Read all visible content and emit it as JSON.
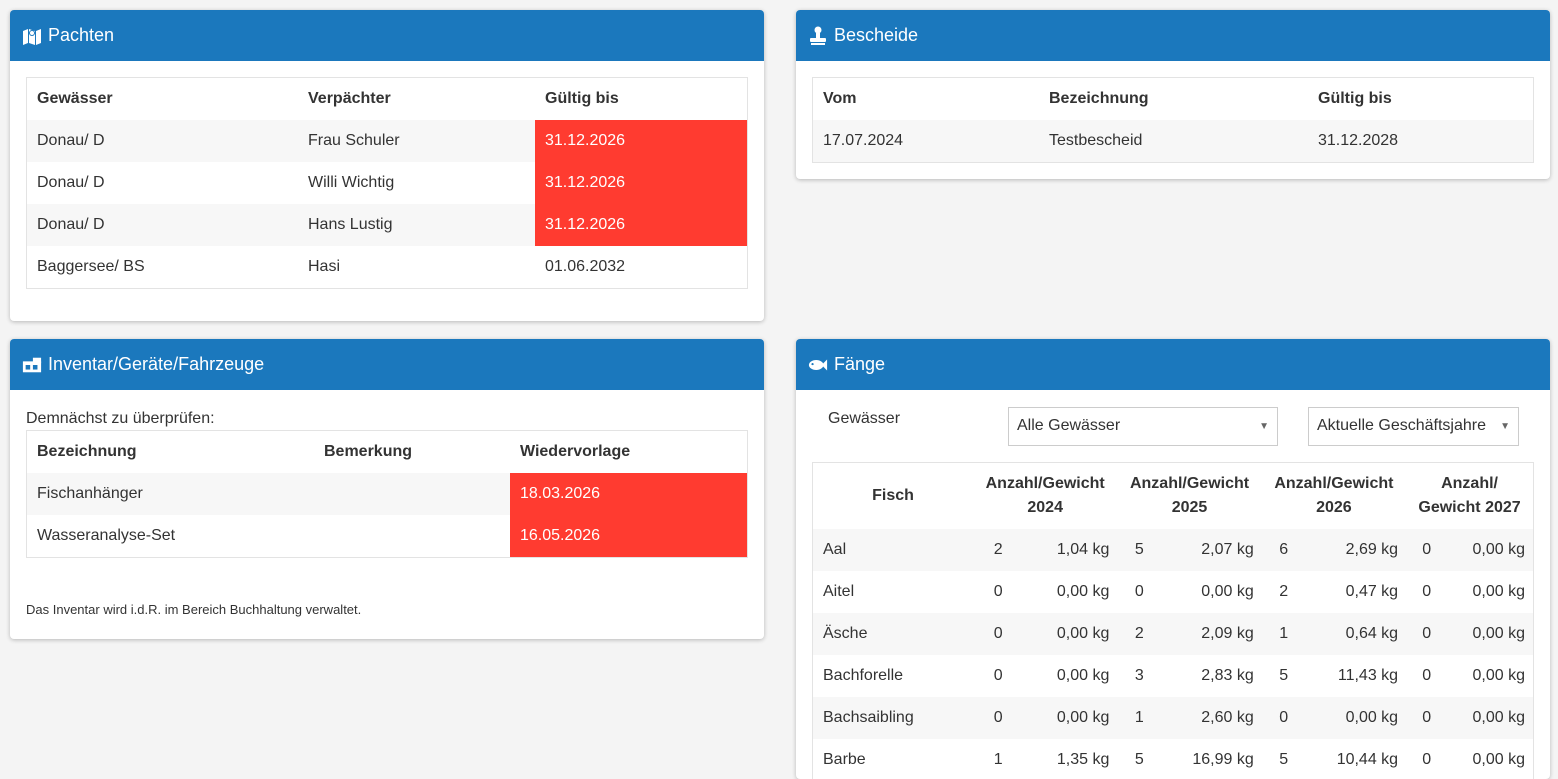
{
  "pachten": {
    "title": "Pachten",
    "icon": "map-icon",
    "headers": [
      "Gewässer",
      "Verpächter",
      "Gültig bis"
    ],
    "rows": [
      {
        "gewaesser": "Donau/ D",
        "verpaechter": "Frau Schuler",
        "gueltig": "31.12.2026",
        "expired": true
      },
      {
        "gewaesser": "Donau/ D",
        "verpaechter": "Willi Wichtig",
        "gueltig": "31.12.2026",
        "expired": true
      },
      {
        "gewaesser": "Donau/ D",
        "verpaechter": "Hans Lustig",
        "gueltig": "31.12.2026",
        "expired": true
      },
      {
        "gewaesser": "Baggersee/ BS",
        "verpaechter": "Hasi",
        "gueltig": "01.06.2032",
        "expired": false
      }
    ]
  },
  "bescheide": {
    "title": "Bescheide",
    "icon": "stamp-icon",
    "headers": [
      "Vom",
      "Bezeichnung",
      "Gültig bis"
    ],
    "rows": [
      {
        "vom": "17.07.2024",
        "bezeichnung": "Testbescheid",
        "gueltig": "31.12.2028"
      }
    ]
  },
  "inventar": {
    "title": "Inventar/Geräte/Fahrzeuge",
    "icon": "inventory-icon",
    "intro": "Demnächst zu überprüfen:",
    "headers": [
      "Bezeichnung",
      "Bemerkung",
      "Wiedervorlage"
    ],
    "rows": [
      {
        "bezeichnung": "Fischanhänger",
        "bemerkung": "",
        "wiedervorlage": "18.03.2026"
      },
      {
        "bezeichnung": "Wasseranalyse-Set",
        "bemerkung": "",
        "wiedervorlage": "16.05.2026"
      }
    ],
    "footer": "Das Inventar wird i.d.R. im Bereich Buchhaltung verwaltet."
  },
  "faenge": {
    "title": "Fänge",
    "icon": "fish-icon",
    "filter_label": "Gewässer",
    "select_gewaesser": "Alle Gewässer",
    "select_jahr": "Aktuelle Geschäftsjahre",
    "headers": {
      "fisch": "Fisch",
      "y2024": [
        "Anzahl/Gewicht",
        "2024"
      ],
      "y2025": [
        "Anzahl/Gewicht",
        "2025"
      ],
      "y2026": [
        "Anzahl/Gewicht",
        "2026"
      ],
      "y2027": [
        "Anzahl/",
        "Gewicht 2027"
      ]
    },
    "rows": [
      {
        "fisch": "Aal",
        "vals": [
          [
            "2",
            "1,04 kg"
          ],
          [
            "5",
            "2,07 kg"
          ],
          [
            "6",
            "2,69 kg"
          ],
          [
            "0",
            "0,00 kg"
          ]
        ]
      },
      {
        "fisch": "Aitel",
        "vals": [
          [
            "0",
            "0,00 kg"
          ],
          [
            "0",
            "0,00 kg"
          ],
          [
            "2",
            "0,47 kg"
          ],
          [
            "0",
            "0,00 kg"
          ]
        ]
      },
      {
        "fisch": "Äsche",
        "vals": [
          [
            "0",
            "0,00 kg"
          ],
          [
            "2",
            "2,09 kg"
          ],
          [
            "1",
            "0,64 kg"
          ],
          [
            "0",
            "0,00 kg"
          ]
        ]
      },
      {
        "fisch": "Bachforelle",
        "vals": [
          [
            "0",
            "0,00 kg"
          ],
          [
            "3",
            "2,83 kg"
          ],
          [
            "5",
            "11,43 kg"
          ],
          [
            "0",
            "0,00 kg"
          ]
        ]
      },
      {
        "fisch": "Bachsaibling",
        "vals": [
          [
            "0",
            "0,00 kg"
          ],
          [
            "1",
            "2,60 kg"
          ],
          [
            "0",
            "0,00 kg"
          ],
          [
            "0",
            "0,00 kg"
          ]
        ]
      },
      {
        "fisch": "Barbe",
        "vals": [
          [
            "1",
            "1,35 kg"
          ],
          [
            "5",
            "16,99 kg"
          ],
          [
            "5",
            "10,44 kg"
          ],
          [
            "0",
            "0,00 kg"
          ]
        ]
      }
    ]
  },
  "colors": {
    "header_blue": "#1b78bd",
    "alert_red": "#ff3b30"
  }
}
